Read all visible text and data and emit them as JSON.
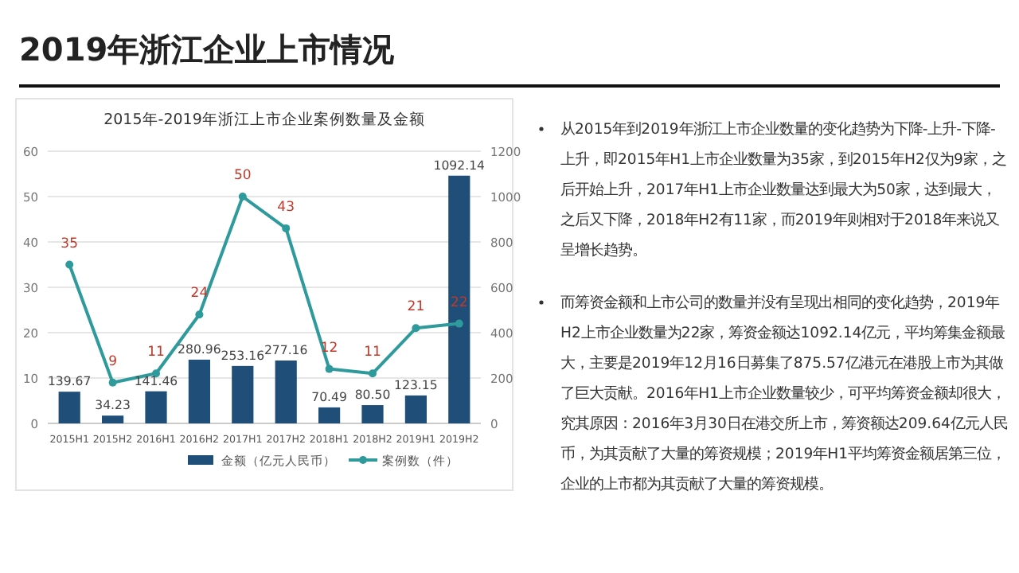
{
  "chart_data": {
    "type": "bar",
    "title": "2019年浙江企业上市情况",
    "subtitle": "2015年-2019年浙江上市企业案例数量及金额",
    "categories": [
      "2015H1",
      "2015H2",
      "2016H1",
      "2016H2",
      "2017H1",
      "2017H2",
      "2018H1",
      "2018H2",
      "2019H1",
      "2019H2"
    ],
    "series": [
      {
        "name": "金额（亿元人民币）",
        "axis": "y2",
        "color": "#1f4e79",
        "values": [
          139.67,
          34.23,
          141.46,
          280.96,
          253.16,
          277.16,
          70.49,
          80.5,
          123.15,
          1092.14
        ],
        "value_labels": [
          "139.67",
          "34.23",
          "141.46",
          "280.96",
          "253.16",
          "277.16",
          "70.49",
          "80.50",
          "123.15",
          "1092.14"
        ]
      },
      {
        "name": "案例数（件）",
        "type": "line",
        "color": "#2e9a9c",
        "values": [
          35,
          9,
          11,
          24,
          50,
          43,
          12,
          11,
          21,
          22
        ]
      }
    ],
    "ylim": [
      0,
      60
    ],
    "yticks": [
      0,
      10,
      20,
      30,
      40,
      50,
      60
    ],
    "y2lim": [
      0,
      1200
    ],
    "y2ticks": [
      0,
      200,
      400,
      600,
      800,
      1000,
      1200
    ],
    "grid": "y",
    "legend": "bottom",
    "marker": "circle",
    "line_style": "solid",
    "data_labels": true,
    "annotations": [
      "从2015年到2019年浙江上市企业数量的变化趋势为下降-上升-下降-上升，即2015年H1上市企业数量为35家，到2015年H2仅为9家，之后开始上升，2017年H1上市企业数量达到最大为50家，达到最大，之后又下降，2018年H2有11家，而2019年则相对于2018年来说又呈增长趋势。",
      "而筹资金额和上市公司的数量并没有呈现出相同的变化趋势，2019年H2上市企业数量为22家，筹资金额达1092.14亿元，平均筹集金额最大，主要是2019年12月16日募集了875.57亿港元在港股上市为其做了巨大贡献。2016年H1上市企业数量较少，可平均筹资金额却很大，究其原因：2016年3月30日在港交所上市，筹资额达209.64亿元人民币，为其贡献了大量的筹资规模；2019年H1平均筹资金额居第三位，企业的上市都为其贡献了大量的筹资规模。"
    ]
  }
}
